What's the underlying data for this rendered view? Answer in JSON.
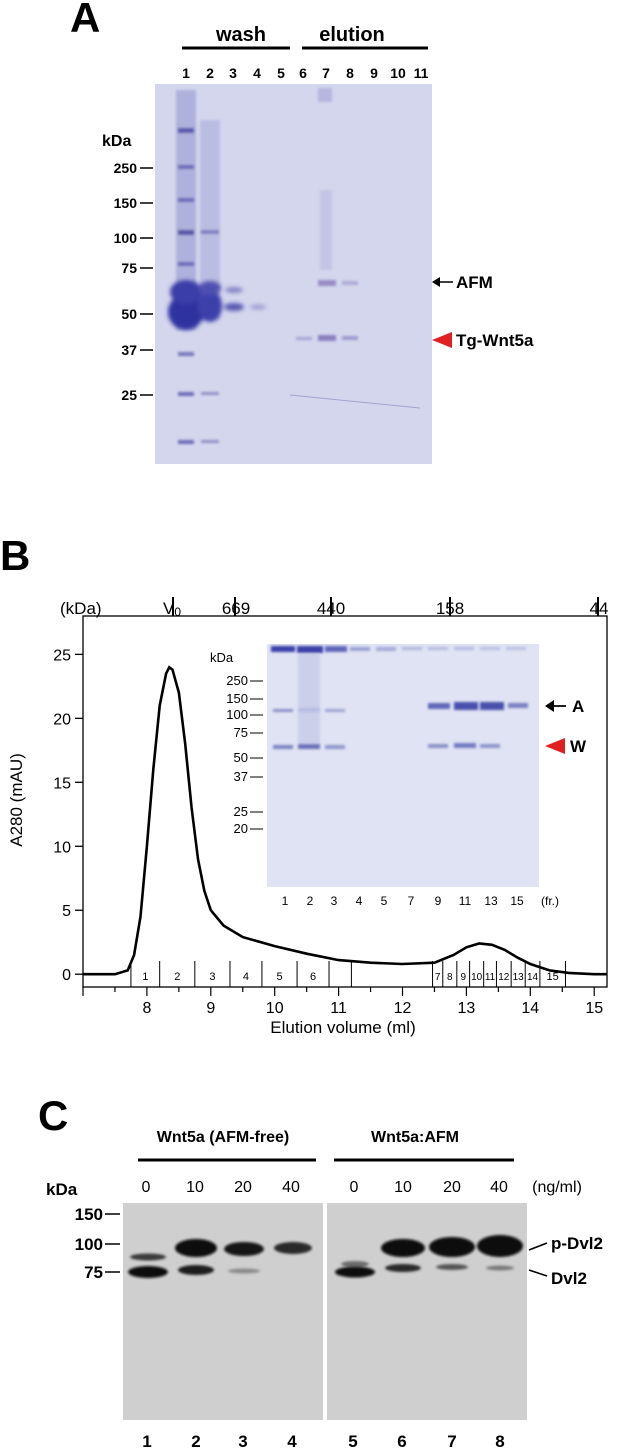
{
  "panels": {
    "a": {
      "letter": "A",
      "groups": {
        "wash": "wash",
        "elution": "elution"
      },
      "lanes": [
        "1",
        "2",
        "3",
        "4",
        "5",
        "6",
        "7",
        "8",
        "9",
        "10",
        "11"
      ],
      "kda_label": "kDa",
      "markers": [
        "250",
        "150",
        "100",
        "75",
        "50",
        "37",
        "25"
      ],
      "annotations": {
        "afm": "AFM",
        "tg": "Tg-Wnt5a"
      }
    },
    "b": {
      "letter": "B",
      "top_axis_unit": "(kDa)",
      "top_ticks": [
        "V0",
        "669",
        "440",
        "158",
        "44"
      ],
      "chart_data": {
        "type": "line",
        "title": "",
        "xlabel": "Elution volume (ml)",
        "ylabel": "A280 (mAU)",
        "xlim": [
          7.0,
          15.2
        ],
        "ylim": [
          -1,
          28
        ],
        "x_ticks": [
          "8",
          "9",
          "10",
          "11",
          "12",
          "13",
          "14",
          "15"
        ],
        "y_ticks": [
          "0",
          "5",
          "10",
          "15",
          "20",
          "25"
        ],
        "x": [
          7.0,
          7.5,
          7.7,
          7.8,
          7.9,
          8.0,
          8.1,
          8.2,
          8.3,
          8.35,
          8.4,
          8.5,
          8.6,
          8.7,
          8.8,
          8.9,
          9.0,
          9.2,
          9.5,
          10.0,
          10.5,
          11.0,
          11.5,
          12.0,
          12.5,
          12.8,
          13.0,
          13.2,
          13.4,
          13.6,
          13.8,
          14.0,
          14.3,
          14.6,
          15.0,
          15.2
        ],
        "y": [
          0,
          0,
          0.3,
          1.5,
          4.5,
          10,
          16,
          21,
          23.5,
          24,
          23.8,
          22,
          18,
          13,
          9,
          6.5,
          5,
          3.8,
          2.9,
          2.2,
          1.6,
          1.1,
          0.9,
          0.8,
          0.9,
          1.5,
          2.1,
          2.4,
          2.3,
          1.9,
          1.3,
          0.8,
          0.3,
          0.1,
          0,
          0
        ],
        "fractions": [
          {
            "label": "1",
            "start": 7.75,
            "end": 8.2
          },
          {
            "label": "2",
            "start": 8.2,
            "end": 8.75
          },
          {
            "label": "3",
            "start": 8.75,
            "end": 9.3
          },
          {
            "label": "4",
            "start": 9.3,
            "end": 9.8
          },
          {
            "label": "5",
            "start": 9.8,
            "end": 10.35
          },
          {
            "label": "6",
            "start": 10.35,
            "end": 10.85
          },
          {
            "label": "7",
            "start": 12.47,
            "end": 12.63
          },
          {
            "label": "8",
            "start": 12.63,
            "end": 12.85
          },
          {
            "label": "9",
            "start": 12.85,
            "end": 13.05
          },
          {
            "label": "10",
            "start": 13.05,
            "end": 13.27
          },
          {
            "label": "11",
            "start": 13.27,
            "end": 13.47
          },
          {
            "label": "12",
            "start": 13.47,
            "end": 13.7
          },
          {
            "label": "13",
            "start": 13.7,
            "end": 13.92
          },
          {
            "label": "14",
            "start": 13.92,
            "end": 14.15
          },
          {
            "label": "15",
            "start": 14.15,
            "end": 14.55
          }
        ],
        "fraction_edges_extra": [
          11.2
        ]
      },
      "inset": {
        "kda_label": "kDa",
        "markers": [
          "250",
          "150",
          "100",
          "75",
          "50",
          "37",
          "25",
          "20"
        ],
        "lanes": [
          "1",
          "2",
          "3",
          "4",
          "5",
          "7",
          "9",
          "11",
          "13",
          "15"
        ],
        "fr_label": "(fr.)",
        "annotations": {
          "a": "A",
          "w": "W"
        }
      }
    },
    "c": {
      "letter": "C",
      "groups": {
        "free": "Wnt5a (AFM-free)",
        "afm": "Wnt5a:AFM"
      },
      "kda_label": "kDa",
      "doses": [
        "0",
        "10",
        "20",
        "40",
        "0",
        "10",
        "20",
        "40"
      ],
      "dose_unit": "(ng/ml)",
      "markers": [
        "150",
        "100",
        "75"
      ],
      "annotations": {
        "p": "p-Dvl2",
        "d": "Dvl2"
      },
      "lanes": [
        "1",
        "2",
        "3",
        "4",
        "5",
        "6",
        "7",
        "8"
      ]
    }
  },
  "colors": {
    "red_marker": "#e02020",
    "gel_bg": "#d4d7ee",
    "band": "#4848a8"
  }
}
